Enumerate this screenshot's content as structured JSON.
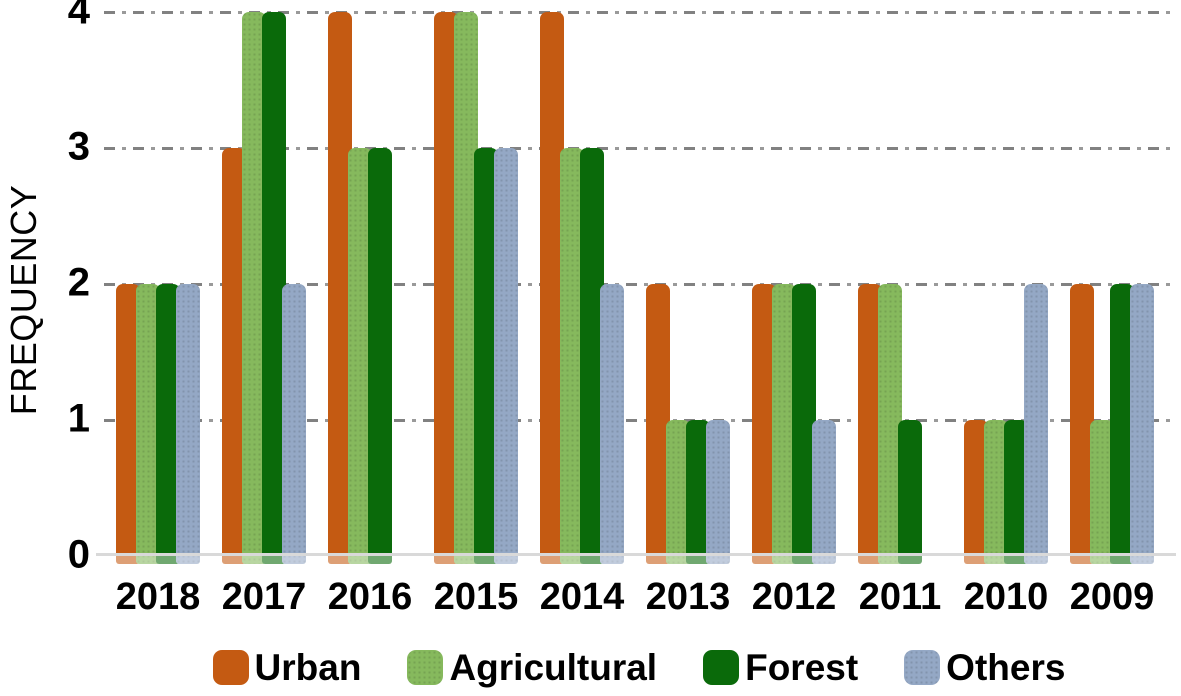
{
  "chart_data": {
    "type": "bar",
    "title": "",
    "xlabel": "",
    "ylabel": "FREQUENCY",
    "categories": [
      "2018",
      "2017",
      "2016",
      "2015",
      "2014",
      "2013",
      "2012",
      "2011",
      "2010",
      "2009"
    ],
    "series": [
      {
        "name": "Urban",
        "color": "#C45A12",
        "pattern": "solid",
        "values": [
          2,
          3,
          4,
          4,
          4,
          2,
          2,
          2,
          1,
          2
        ]
      },
      {
        "name": "Agricultural",
        "color": "#86B95D",
        "pattern": "dotted",
        "values": [
          2,
          4,
          3,
          4,
          3,
          1,
          2,
          2,
          1,
          1
        ]
      },
      {
        "name": "Forest",
        "color": "#0A6A0A",
        "pattern": "solid",
        "values": [
          2,
          4,
          3,
          3,
          3,
          1,
          2,
          1,
          1,
          2
        ]
      },
      {
        "name": "Others",
        "color": "#94A8C5",
        "pattern": "dotted",
        "values": [
          2,
          2,
          0,
          3,
          2,
          1,
          1,
          0,
          2,
          2
        ]
      }
    ],
    "ylim": [
      0,
      4
    ],
    "yticks": [
      0,
      1,
      2,
      3,
      4
    ],
    "grid": "horizontal dash-dot gray",
    "baseline_color": "#D9D9D9",
    "gridline_color": "#818181",
    "legend_position": "bottom"
  }
}
